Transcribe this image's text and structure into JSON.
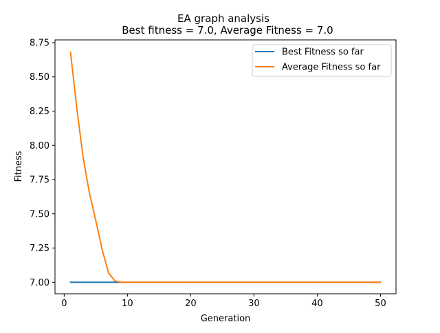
{
  "chart_data": {
    "type": "line",
    "title": "EA graph analysis",
    "subtitle": "Best fitness = 7.0, Average Fitness = 7.0",
    "xlabel": "Generation",
    "ylabel": "Fitness",
    "xlim": [
      -1.45,
      52.45
    ],
    "ylim": [
      6.916,
      8.77
    ],
    "xticks": [
      0,
      10,
      20,
      30,
      40,
      50
    ],
    "yticks": [
      7.0,
      7.25,
      7.5,
      7.75,
      8.0,
      8.25,
      8.5,
      8.75
    ],
    "ytick_labels": [
      "7.00",
      "7.25",
      "7.50",
      "7.75",
      "8.00",
      "8.25",
      "8.50",
      "8.75"
    ],
    "grid": false,
    "legend_position": "top-right",
    "x": [
      1,
      2,
      3,
      4,
      5,
      6,
      7,
      8,
      9,
      10,
      11,
      12,
      13,
      14,
      15,
      16,
      17,
      18,
      19,
      20,
      21,
      22,
      23,
      24,
      25,
      26,
      27,
      28,
      29,
      30,
      31,
      32,
      33,
      34,
      35,
      36,
      37,
      38,
      39,
      40,
      41,
      42,
      43,
      44,
      45,
      46,
      47,
      48,
      49,
      50
    ],
    "series": [
      {
        "name": "Best Fitness so far",
        "color": "#1f77b4",
        "values": [
          7.0,
          7.0,
          7.0,
          7.0,
          7.0,
          7.0,
          7.0,
          7.0,
          7.0,
          7.0,
          7.0,
          7.0,
          7.0,
          7.0,
          7.0,
          7.0,
          7.0,
          7.0,
          7.0,
          7.0,
          7.0,
          7.0,
          7.0,
          7.0,
          7.0,
          7.0,
          7.0,
          7.0,
          7.0,
          7.0,
          7.0,
          7.0,
          7.0,
          7.0,
          7.0,
          7.0,
          7.0,
          7.0,
          7.0,
          7.0,
          7.0,
          7.0,
          7.0,
          7.0,
          7.0,
          7.0,
          7.0,
          7.0,
          7.0,
          7.0
        ]
      },
      {
        "name": "Average Fitness so far",
        "color": "#ff7f0e",
        "values": [
          8.68,
          8.27,
          7.91,
          7.65,
          7.45,
          7.24,
          7.07,
          7.01,
          7.0,
          7.0,
          7.0,
          7.0,
          7.0,
          7.0,
          7.0,
          7.0,
          7.0,
          7.0,
          7.0,
          7.0,
          7.0,
          7.0,
          7.0,
          7.0,
          7.0,
          7.0,
          7.0,
          7.0,
          7.0,
          7.0,
          7.0,
          7.0,
          7.0,
          7.0,
          7.0,
          7.0,
          7.0,
          7.0,
          7.0,
          7.0,
          7.0,
          7.0,
          7.0,
          7.0,
          7.0,
          7.0,
          7.0,
          7.0,
          7.0,
          7.0
        ]
      }
    ]
  }
}
